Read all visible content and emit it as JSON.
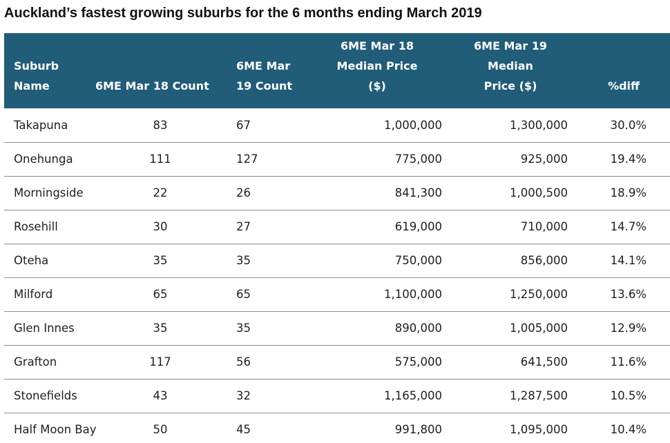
{
  "title": "Auckland’s fastest growing suburbs for the 6 months ending March 2019",
  "table": {
    "headers": {
      "suburb": [
        "Suburb",
        "Name"
      ],
      "count18": [
        "6ME Mar 18 Count"
      ],
      "count19": [
        "6ME Mar",
        "19 Count"
      ],
      "price18": [
        "6ME Mar 18",
        "Median Price",
        "($)"
      ],
      "price19": [
        "6ME Mar 19 Median",
        "Price ($)"
      ],
      "diff": [
        "%diff"
      ]
    },
    "rows": [
      {
        "suburb": "Takapuna",
        "count18": "83",
        "count19": "67",
        "price18": "1,000,000",
        "price19": "1,300,000",
        "diff": "30.0%"
      },
      {
        "suburb": "Onehunga",
        "count18": "111",
        "count19": "127",
        "price18": "775,000",
        "price19": "925,000",
        "diff": "19.4%"
      },
      {
        "suburb": "Morningside",
        "count18": "22",
        "count19": "26",
        "price18": "841,300",
        "price19": "1,000,500",
        "diff": "18.9%"
      },
      {
        "suburb": "Rosehill",
        "count18": "30",
        "count19": "27",
        "price18": "619,000",
        "price19": "710,000",
        "diff": "14.7%"
      },
      {
        "suburb": "Oteha",
        "count18": "35",
        "count19": "35",
        "price18": "750,000",
        "price19": "856,000",
        "diff": "14.1%"
      },
      {
        "suburb": "Milford",
        "count18": "65",
        "count19": "65",
        "price18": "1,100,000",
        "price19": "1,250,000",
        "diff": "13.6%"
      },
      {
        "suburb": "Glen Innes",
        "count18": "35",
        "count19": "35",
        "price18": "890,000",
        "price19": "1,005,000",
        "diff": "12.9%"
      },
      {
        "suburb": "Grafton",
        "count18": "117",
        "count19": "56",
        "price18": "575,000",
        "price19": "641,500",
        "diff": "11.6%"
      },
      {
        "suburb": "Stonefields",
        "count18": "43",
        "count19": "32",
        "price18": "1,165,000",
        "price19": "1,287,500",
        "diff": "10.5%"
      },
      {
        "suburb": "Half Moon Bay",
        "count18": "50",
        "count19": "45",
        "price18": "991,800",
        "price19": "1,095,000",
        "diff": "10.4%"
      }
    ]
  },
  "colors": {
    "header_bg": "#215c79",
    "header_text": "#ffffff",
    "row_divider": "#8c8c8c"
  }
}
